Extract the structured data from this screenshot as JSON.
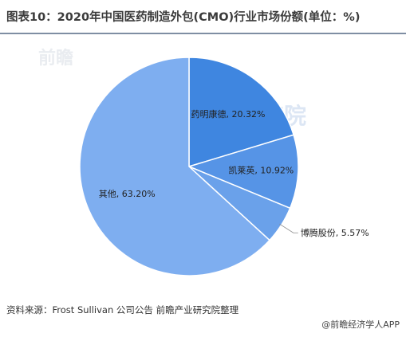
{
  "title": "图表10：2020年中国医药制造外包(CMO)行业市场份额(单位：%)",
  "source": "资料来源：Frost Sullivan 公司公告 前瞻产业研究院整理",
  "logo": "@前瞻经济学人APP",
  "watermark": "前瞻",
  "watermark_mid": "研究院",
  "chart_data": {
    "type": "pie",
    "title": "",
    "slices": [
      {
        "label": "药明康德",
        "value": 20.32,
        "display": "药明康德, 20.32%",
        "color": "#3f86e0"
      },
      {
        "label": "凯莱英",
        "value": 10.92,
        "display": "凯莱英, 10.92%",
        "color": "#5694e6"
      },
      {
        "label": "博腾股份",
        "value": 5.57,
        "display": "博腾股份, 5.57%",
        "color": "#6aa1ea"
      },
      {
        "label": "其他",
        "value": 63.2,
        "display": "其他, 63.20%",
        "color": "#7eaef0"
      }
    ],
    "start_angle": "12 o'clock",
    "direction": "clockwise",
    "legend": "none",
    "label_style": "category, value"
  }
}
